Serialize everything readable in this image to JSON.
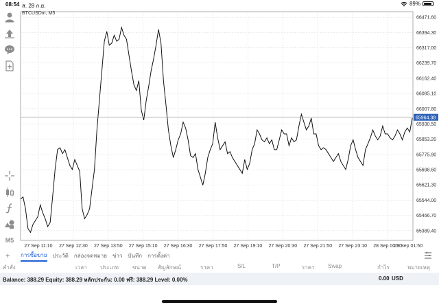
{
  "status_bar": {
    "time": "08:54",
    "date": "ส. 28 ก.ย.",
    "battery": "89%",
    "battery_level": 0.89
  },
  "toolbar": {
    "icons": [
      "account-icon",
      "trade-icon",
      "chat-icon",
      "new-file-icon",
      "crosshair-icon",
      "chart-type-icon",
      "indicator-icon",
      "objects-icon"
    ],
    "timeframe": "M5"
  },
  "chart": {
    "symbol_label": "BTCUSDm, M5",
    "current_price_label": "65964.38",
    "colors": {
      "line": "#111111",
      "price_badge": "#2e63b8",
      "grid": "#d9d9d9"
    }
  },
  "chart_data": {
    "type": "line",
    "title": "BTCUSDm, M5",
    "xlabel": "",
    "ylabel": "",
    "y_ticks": [
      "66471.60",
      "66394.30",
      "66317.00",
      "66239.70",
      "66162.40",
      "66085.10",
      "66007.80",
      "65930.50",
      "65853.20",
      "65775.90",
      "65698.60",
      "65621.30",
      "65544.00",
      "65466.70",
      "65389.40"
    ],
    "x_ticks": [
      "27 Sep 11:10",
      "27 Sep 12:30",
      "27 Sep 13:50",
      "27 Sep 15:10",
      "27 Sep 16:30",
      "27 Sep 17:50",
      "27 Sep 19:10",
      "27 Sep 20:30",
      "27 Sep 21:50",
      "27 Sep 23:10",
      "28 Sep 00:30",
      "28 Sep 01:50"
    ],
    "ylim": [
      65340,
      66500
    ],
    "current_price": 65964.38,
    "grid": true,
    "series": [
      {
        "values": [
          65550,
          65560,
          65500,
          65400,
          65380,
          65420,
          65440,
          65460,
          65520,
          65480,
          65450,
          65410,
          65430,
          65560,
          65700,
          65800,
          65810,
          65780,
          65800,
          65760,
          65720,
          65700,
          65750,
          65720,
          65690,
          65500,
          65450,
          65470,
          65500,
          65600,
          65700,
          65900,
          66050,
          66200,
          66350,
          66400,
          66330,
          66340,
          66380,
          66350,
          66360,
          66420,
          66380,
          66360,
          66280,
          66200,
          66130,
          66100,
          66150,
          66000,
          65950,
          66050,
          66120,
          66200,
          66260,
          66330,
          66410,
          66340,
          66150,
          66030,
          65900,
          65820,
          65760,
          65800,
          65850,
          65880,
          65940,
          65910,
          65850,
          65770,
          65760,
          65780,
          65700,
          65660,
          65620,
          65680,
          65760,
          65800,
          65830,
          65940,
          65860,
          65800,
          65820,
          65840,
          65780,
          65790,
          65760,
          65740,
          65720,
          65700,
          65680,
          65750,
          65700,
          65730,
          65800,
          65830,
          65900,
          65880,
          65850,
          65840,
          65860,
          65830,
          65850,
          65800,
          65800,
          65850,
          65900,
          65880,
          65880,
          65820,
          65860,
          65840,
          65850,
          65920,
          65980,
          65940,
          65900,
          65920,
          65960,
          65880,
          65880,
          65820,
          65800,
          65810,
          65800,
          65780,
          65760,
          65740,
          65760,
          65780,
          65740,
          65720,
          65700,
          65750,
          65820,
          65850,
          65800,
          65760,
          65740,
          65720,
          65800,
          65830,
          65860,
          65900,
          65870,
          65850,
          65870,
          65920,
          65880,
          65880,
          65860,
          65850,
          65870,
          65900,
          65880,
          65850,
          65890,
          65910,
          65890,
          65960
        ]
      }
    ]
  },
  "tabs": {
    "add_label": "+",
    "items": [
      "การซื้อขาย",
      "ประวัติ",
      "กล่องจดหมาย",
      "ข่าว",
      "บันทึก",
      "การตั้งค่า"
    ]
  },
  "table_headers": [
    "คำสั่ง",
    "เวลา",
    "ประเภท",
    "ขนาด",
    "สัญลักษณ์",
    "ราคา",
    "S/L",
    "T/P",
    "ราคา",
    "Swap",
    "กำไร",
    "หมายเหตุ"
  ],
  "balance": {
    "text": "Balance: 388.29 Equity: 388.29 หลักประกัน: 0.00 ฟรี: 388.29 Level: 0.00%",
    "profit": "0.00",
    "currency": "USD"
  }
}
